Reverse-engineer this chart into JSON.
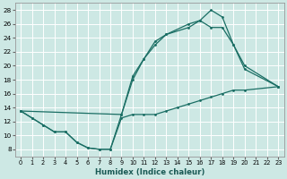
{
  "xlabel": "Humidex (Indice chaleur)",
  "background_color": "#cde8e4",
  "grid_color": "#ffffff",
  "line_color": "#1a6e64",
  "xlim": [
    -0.5,
    23.5
  ],
  "ylim": [
    7,
    29
  ],
  "xticks": [
    0,
    1,
    2,
    3,
    4,
    5,
    6,
    7,
    8,
    9,
    10,
    11,
    12,
    13,
    14,
    15,
    16,
    17,
    18,
    19,
    20,
    21,
    22,
    23
  ],
  "yticks": [
    8,
    10,
    12,
    14,
    16,
    18,
    20,
    22,
    24,
    26,
    28
  ],
  "line_upper_x": [
    0,
    1,
    2,
    3,
    4,
    5,
    6,
    7,
    8,
    9,
    10,
    11,
    12,
    13,
    15,
    16,
    17,
    18,
    19,
    20,
    23
  ],
  "line_upper_y": [
    13.5,
    12.5,
    11.5,
    10.5,
    10.5,
    9.0,
    8.2,
    8.0,
    8.0,
    13.0,
    18.5,
    21.0,
    23.5,
    24.5,
    26.0,
    26.5,
    28.0,
    27.0,
    23.0,
    20.0,
    17.0
  ],
  "line_lower_x": [
    0,
    1,
    2,
    3,
    4,
    5,
    6,
    7,
    8,
    9,
    10,
    11,
    12,
    13,
    14,
    15,
    16,
    17,
    18,
    19,
    20,
    23
  ],
  "line_lower_y": [
    13.5,
    12.5,
    11.5,
    10.5,
    10.5,
    9.0,
    8.2,
    8.0,
    8.0,
    12.5,
    13.0,
    13.0,
    13.0,
    13.5,
    14.0,
    14.5,
    15.0,
    15.5,
    16.0,
    16.5,
    16.5,
    17.0
  ],
  "line_mid_x": [
    0,
    9,
    10,
    11,
    12,
    13,
    15,
    16,
    17,
    18,
    19,
    20,
    23
  ],
  "line_mid_y": [
    13.5,
    13.0,
    18.0,
    21.0,
    23.0,
    24.5,
    25.5,
    26.5,
    25.5,
    25.5,
    23.0,
    19.5,
    17.0
  ]
}
